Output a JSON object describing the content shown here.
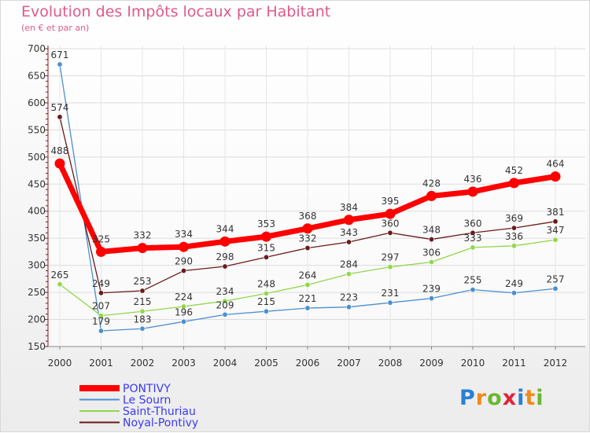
{
  "title": "Evolution des Impôts locaux par Habitant",
  "subtitle": "(en € et par an)",
  "logo": "Proxiti",
  "colors": {
    "title": "#e05a8a",
    "axis": "#8b1a1a"
  },
  "chart_data": {
    "type": "line",
    "title": "Evolution des Impôts locaux par Habitant",
    "ylabel": "(en € et par an)",
    "xlabel": "",
    "ylim": [
      150,
      700
    ],
    "yticks": [
      150,
      200,
      250,
      300,
      350,
      400,
      450,
      500,
      550,
      600,
      650,
      700
    ],
    "x": [
      "2000",
      "2001",
      "2002",
      "2003",
      "2004",
      "2005",
      "2006",
      "2007",
      "2008",
      "2009",
      "2010",
      "2011",
      "2012"
    ],
    "legend_position": "bottom-left",
    "series": [
      {
        "name": "PONTIVY",
        "color": "#ff0000",
        "values": [
          488,
          325,
          332,
          334,
          344,
          353,
          368,
          384,
          395,
          428,
          436,
          452,
          464
        ]
      },
      {
        "name": "Le Sourn",
        "color": "#4b8fd0",
        "values": [
          671,
          179,
          183,
          196,
          209,
          215,
          221,
          223,
          231,
          239,
          255,
          249,
          257
        ]
      },
      {
        "name": "Saint-Thuriau",
        "color": "#8fd84a",
        "values": [
          265,
          207,
          215,
          224,
          234,
          248,
          264,
          284,
          297,
          306,
          333,
          336,
          347
        ]
      },
      {
        "name": "Noyal-Pontivy",
        "color": "#6b1a1a",
        "values": [
          574,
          249,
          253,
          290,
          298,
          315,
          332,
          343,
          360,
          348,
          360,
          369,
          381
        ]
      }
    ]
  }
}
